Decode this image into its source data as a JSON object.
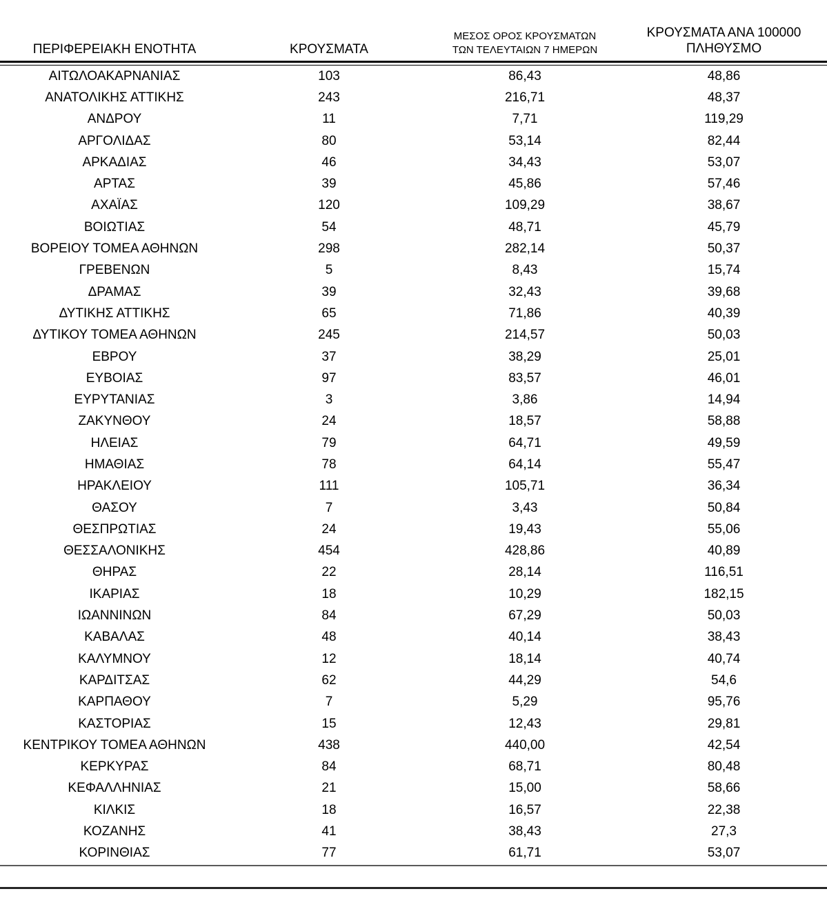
{
  "table": {
    "columns": [
      {
        "key": "region",
        "label": "ΠΕΡΙΦΕΡΕΙΑΚΗ ΕΝΟΤΗΤΑ"
      },
      {
        "key": "cases",
        "label": "ΚΡΟΥΣΜΑΤΑ"
      },
      {
        "key": "avg7",
        "label_line1": "ΜΕΣΟΣ ΟΡΟΣ ΚΡΟΥΣΜΑΤΩΝ",
        "label_line2": "ΤΩΝ ΤΕΛΕΥΤΑΙΩΝ 7 ΗΜΕΡΩΝ"
      },
      {
        "key": "per100k",
        "label_line1": "ΚΡΟΥΣΜΑΤΑ ΑΝΑ 100000",
        "label_line2": "ΠΛΗΘΥΣΜΟ"
      }
    ],
    "rows": [
      [
        "ΑΙΤΩΛΟΑΚΑΡΝΑΝΙΑΣ",
        "103",
        "86,43",
        "48,86"
      ],
      [
        "ΑΝΑΤΟΛΙΚΗΣ ΑΤΤΙΚΗΣ",
        "243",
        "216,71",
        "48,37"
      ],
      [
        "ΑΝΔΡΟΥ",
        "11",
        "7,71",
        "119,29"
      ],
      [
        "ΑΡΓΟΛΙΔΑΣ",
        "80",
        "53,14",
        "82,44"
      ],
      [
        "ΑΡΚΑΔΙΑΣ",
        "46",
        "34,43",
        "53,07"
      ],
      [
        "ΑΡΤΑΣ",
        "39",
        "45,86",
        "57,46"
      ],
      [
        "ΑΧΑΪΑΣ",
        "120",
        "109,29",
        "38,67"
      ],
      [
        "ΒΟΙΩΤΙΑΣ",
        "54",
        "48,71",
        "45,79"
      ],
      [
        "ΒΟΡΕΙΟΥ ΤΟΜΕΑ ΑΘΗΝΩΝ",
        "298",
        "282,14",
        "50,37"
      ],
      [
        "ΓΡΕΒΕΝΩΝ",
        "5",
        "8,43",
        "15,74"
      ],
      [
        "ΔΡΑΜΑΣ",
        "39",
        "32,43",
        "39,68"
      ],
      [
        "ΔΥΤΙΚΗΣ ΑΤΤΙΚΗΣ",
        "65",
        "71,86",
        "40,39"
      ],
      [
        "ΔΥΤΙΚΟΥ ΤΟΜΕΑ ΑΘΗΝΩΝ",
        "245",
        "214,57",
        "50,03"
      ],
      [
        "ΕΒΡΟΥ",
        "37",
        "38,29",
        "25,01"
      ],
      [
        "ΕΥΒΟΙΑΣ",
        "97",
        "83,57",
        "46,01"
      ],
      [
        "ΕΥΡΥΤΑΝΙΑΣ",
        "3",
        "3,86",
        "14,94"
      ],
      [
        "ΖΑΚΥΝΘΟΥ",
        "24",
        "18,57",
        "58,88"
      ],
      [
        "ΗΛΕΙΑΣ",
        "79",
        "64,71",
        "49,59"
      ],
      [
        "ΗΜΑΘΙΑΣ",
        "78",
        "64,14",
        "55,47"
      ],
      [
        "ΗΡΑΚΛΕΙΟΥ",
        "111",
        "105,71",
        "36,34"
      ],
      [
        "ΘΑΣΟΥ",
        "7",
        "3,43",
        "50,84"
      ],
      [
        "ΘΕΣΠΡΩΤΙΑΣ",
        "24",
        "19,43",
        "55,06"
      ],
      [
        "ΘΕΣΣΑΛΟΝΙΚΗΣ",
        "454",
        "428,86",
        "40,89"
      ],
      [
        "ΘΗΡΑΣ",
        "22",
        "28,14",
        "116,51"
      ],
      [
        "ΙΚΑΡΙΑΣ",
        "18",
        "10,29",
        "182,15"
      ],
      [
        "ΙΩΑΝΝΙΝΩΝ",
        "84",
        "67,29",
        "50,03"
      ],
      [
        "ΚΑΒΑΛΑΣ",
        "48",
        "40,14",
        "38,43"
      ],
      [
        "ΚΑΛΥΜΝΟΥ",
        "12",
        "18,14",
        "40,74"
      ],
      [
        "ΚΑΡΔΙΤΣΑΣ",
        "62",
        "44,29",
        "54,6"
      ],
      [
        "ΚΑΡΠΑΘΟΥ",
        "7",
        "5,29",
        "95,76"
      ],
      [
        "ΚΑΣΤΟΡΙΑΣ",
        "15",
        "12,43",
        "29,81"
      ],
      [
        "ΚΕΝΤΡΙΚΟΥ ΤΟΜΕΑ ΑΘΗΝΩΝ",
        "438",
        "440,00",
        "42,54"
      ],
      [
        "ΚΕΡΚΥΡΑΣ",
        "84",
        "68,71",
        "80,48"
      ],
      [
        "ΚΕΦΑΛΛΗΝΙΑΣ",
        "21",
        "15,00",
        "58,66"
      ],
      [
        "ΚΙΛΚΙΣ",
        "18",
        "16,57",
        "22,38"
      ],
      [
        "ΚΟΖΑΝΗΣ",
        "41",
        "38,43",
        "27,3"
      ],
      [
        "ΚΟΡΙΝΘΙΑΣ",
        "77",
        "61,71",
        "53,07"
      ]
    ]
  },
  "colors": {
    "text": "#000000",
    "header_rule": "#000000",
    "bottom_rule_gray": "#595959",
    "bottom_rule_dark": "#262626"
  }
}
